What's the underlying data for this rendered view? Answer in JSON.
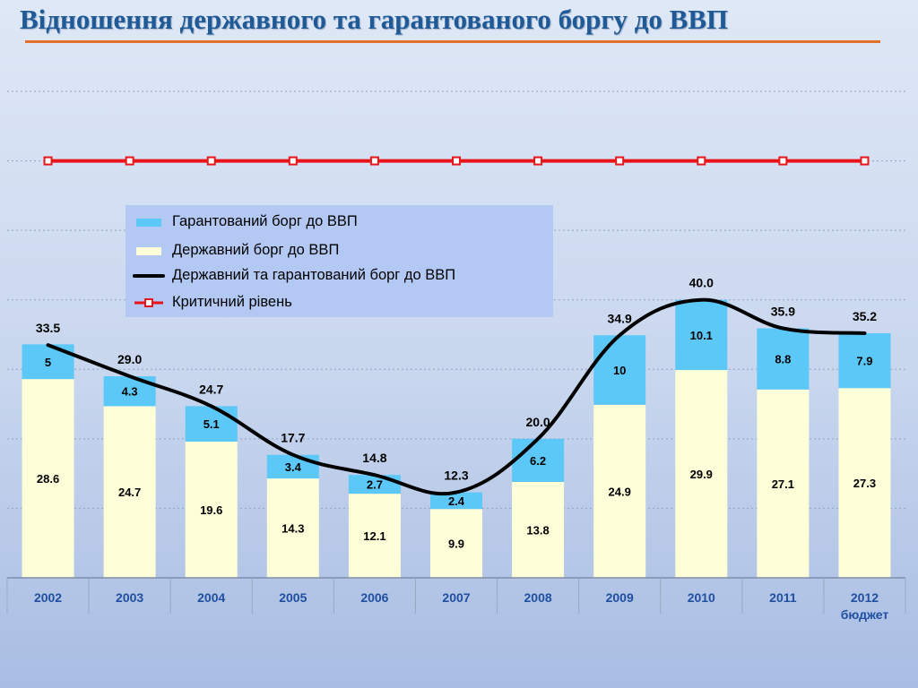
{
  "slide": {
    "title": "Відношення державного та гарантованого боргу до ВВП"
  },
  "colors": {
    "title": "#1f5a96",
    "title_rule": "#e0702a",
    "state_debt": "#fefed8",
    "guaranteed_debt": "#5bc8f8",
    "total_line": "#000000",
    "critical_line": "#e8141a",
    "axis_labels": "#1f4fa0",
    "legend_bg": "#b3c9f3"
  },
  "chart_data": {
    "type": "bar",
    "stacked": true,
    "categories": [
      "2002",
      "2003",
      "2004",
      "2005",
      "2006",
      "2007",
      "2008",
      "2009",
      "2010",
      "2011",
      "2012"
    ],
    "category_sublabels": [
      "",
      "",
      "",
      "",
      "",
      "",
      "",
      "",
      "",
      "",
      "бюджет"
    ],
    "series": [
      {
        "name": "Державний борг до ВВП",
        "kind": "bar",
        "values": [
          28.6,
          24.7,
          19.6,
          14.3,
          12.1,
          9.9,
          13.8,
          24.9,
          29.9,
          27.1,
          27.3
        ],
        "value_labels": [
          "28.6",
          "24.7",
          "19.6",
          "14.3",
          "12.1",
          "9.9",
          "13.8",
          "24.9",
          "29.9",
          "27.1",
          "27.3"
        ]
      },
      {
        "name": "Гарантований борг до ВВП",
        "kind": "bar",
        "values": [
          5,
          4.3,
          5.1,
          3.4,
          2.7,
          2.4,
          6.2,
          10,
          10.1,
          8.8,
          7.9
        ],
        "value_labels": [
          "5",
          "4.3",
          "5.1",
          "3.4",
          "2.7",
          "2.4",
          "6.2",
          "10",
          "10.1",
          "8.8",
          "7.9"
        ]
      },
      {
        "name": "Державний та гарантований борг до ВВП",
        "kind": "line",
        "values": [
          33.5,
          29.0,
          24.7,
          17.7,
          14.8,
          12.3,
          20.0,
          34.9,
          40.0,
          35.9,
          35.2
        ],
        "value_labels": [
          "33.5",
          "29.0",
          "24.7",
          "17.7",
          "14.8",
          "12.3",
          "20.0",
          "34.9",
          "40.0",
          "35.9",
          "35.2"
        ]
      },
      {
        "name": "Критичний рівень",
        "kind": "line",
        "values": [
          60,
          60,
          60,
          60,
          60,
          60,
          60,
          60,
          60,
          60,
          60
        ]
      }
    ],
    "ylim": [
      0,
      70
    ],
    "grid": true,
    "legend_position": "upper-center"
  }
}
